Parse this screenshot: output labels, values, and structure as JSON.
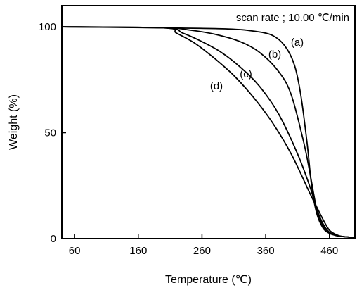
{
  "chart_data": {
    "type": "line",
    "title": "",
    "annotation": "scan rate ; 10.00 ℃/min",
    "xlabel": "Temperature (℃)",
    "ylabel": "Weight (%)",
    "xlim": [
      40,
      500
    ],
    "ylim": [
      0,
      110
    ],
    "xticks": [
      60,
      160,
      260,
      360,
      460
    ],
    "yticks": [
      0,
      50,
      100
    ],
    "grid": false,
    "series": [
      {
        "name": "(a)",
        "x": [
          40,
          200,
          300,
          340,
          370,
          390,
          405,
          415,
          425,
          432,
          440,
          450,
          460,
          470,
          480,
          500
        ],
        "y": [
          100,
          99.5,
          99,
          98,
          96,
          91,
          82,
          68,
          45,
          25,
          12,
          5,
          2.5,
          1.5,
          1,
          0.5
        ]
      },
      {
        "name": "(b)",
        "x": [
          40,
          200,
          240,
          280,
          320,
          350,
          380,
          400,
          420,
          430,
          440,
          450,
          460,
          470,
          480,
          500
        ],
        "y": [
          100,
          99.5,
          98.5,
          96.5,
          93,
          88,
          79,
          68,
          45,
          30,
          14,
          6,
          3,
          1.5,
          1,
          0.5
        ]
      },
      {
        "name": "(c)",
        "x": [
          40,
          200,
          230,
          260,
          290,
          320,
          350,
          380,
          410,
          430,
          440,
          450,
          460,
          470,
          480,
          500
        ],
        "y": [
          100,
          99.5,
          97,
          93,
          88,
          81,
          72,
          59,
          40,
          24,
          14,
          7,
          3,
          1.5,
          1,
          0.5
        ]
      },
      {
        "name": "(d)",
        "x": [
          40,
          200,
          220,
          250,
          280,
          310,
          340,
          370,
          400,
          430,
          440,
          450,
          460,
          470,
          480,
          500
        ],
        "y": [
          100,
          99.5,
          97,
          92,
          85,
          77,
          67,
          55,
          40,
          21,
          15,
          9,
          4,
          2,
          1,
          0.5
        ]
      }
    ]
  }
}
